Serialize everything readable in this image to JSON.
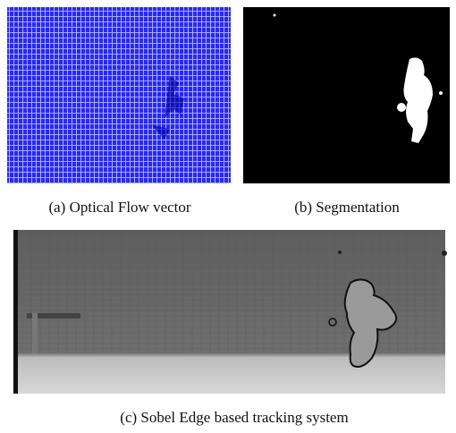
{
  "figures": [
    {
      "caption": "(a) Optical Flow vector"
    },
    {
      "caption": "(b) Segmentation"
    },
    {
      "caption": "(c) Sobel Edge based tracking system"
    }
  ]
}
